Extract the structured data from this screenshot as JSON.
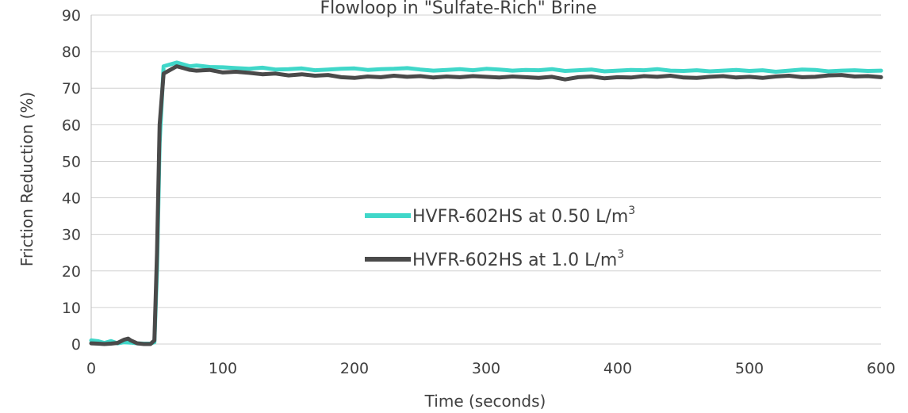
{
  "chart_data": {
    "type": "line",
    "title": "Flowloop in \"Sulfate-Rich\" Brine",
    "xlabel": "Time (seconds)",
    "ylabel": "Friction Reduction (%)",
    "xlim": [
      0,
      600
    ],
    "ylim": [
      0,
      90
    ],
    "x_ticks": [
      0,
      100,
      200,
      300,
      400,
      500,
      600
    ],
    "y_ticks": [
      0,
      10,
      20,
      30,
      40,
      50,
      60,
      70,
      80,
      90
    ],
    "grid": "horizontal",
    "legend_position": "center",
    "series": [
      {
        "name_main": "HVFR-602HS at 0.50 L/m",
        "name_sup": "3",
        "color": "#40d7c9",
        "x": [
          0,
          5,
          10,
          15,
          20,
          25,
          30,
          35,
          40,
          45,
          48,
          50,
          52,
          55,
          60,
          65,
          70,
          75,
          80,
          90,
          100,
          110,
          120,
          130,
          140,
          150,
          160,
          170,
          180,
          190,
          200,
          210,
          220,
          230,
          240,
          250,
          260,
          270,
          280,
          290,
          300,
          310,
          320,
          330,
          340,
          350,
          360,
          370,
          380,
          390,
          400,
          410,
          420,
          430,
          440,
          450,
          460,
          470,
          480,
          490,
          500,
          510,
          520,
          530,
          540,
          550,
          560,
          570,
          580,
          590,
          600
        ],
        "y": [
          1,
          0.8,
          0.3,
          0.8,
          0.2,
          0.5,
          0.4,
          0.2,
          0.1,
          0.1,
          0.5,
          20,
          55,
          76,
          76.5,
          77,
          76.5,
          76,
          76.2,
          75.8,
          75.7,
          75.5,
          75.3,
          75.6,
          75.1,
          75.2,
          75.4,
          74.9,
          75.1,
          75.3,
          75.4,
          75.0,
          75.2,
          75.3,
          75.5,
          75.1,
          74.8,
          75.0,
          75.2,
          74.9,
          75.3,
          75.1,
          74.8,
          75.0,
          74.9,
          75.2,
          74.7,
          74.9,
          75.1,
          74.6,
          74.8,
          75.0,
          74.9,
          75.2,
          74.8,
          74.7,
          74.9,
          74.6,
          74.8,
          75.0,
          74.7,
          74.9,
          74.5,
          74.8,
          75.1,
          75.0,
          74.6,
          74.8,
          74.9,
          74.7,
          74.8
        ]
      },
      {
        "name_main": "HVFR-602HS at 1.0 L/m",
        "name_sup": "3",
        "color": "#4a4a4a",
        "x": [
          0,
          5,
          10,
          15,
          20,
          25,
          28,
          30,
          35,
          40,
          45,
          48,
          50,
          52,
          55,
          60,
          65,
          70,
          75,
          80,
          90,
          100,
          110,
          120,
          130,
          140,
          150,
          160,
          170,
          180,
          190,
          200,
          210,
          220,
          230,
          240,
          250,
          260,
          270,
          280,
          290,
          300,
          310,
          320,
          330,
          340,
          350,
          360,
          370,
          380,
          390,
          400,
          410,
          420,
          430,
          440,
          450,
          460,
          470,
          480,
          490,
          500,
          510,
          520,
          530,
          540,
          550,
          560,
          570,
          580,
          590,
          600
        ],
        "y": [
          0.2,
          0.1,
          0.0,
          0.1,
          0.3,
          1.2,
          1.5,
          1.0,
          0.2,
          0.0,
          0.0,
          1.0,
          25,
          60,
          74,
          75,
          76,
          75.5,
          75,
          74.8,
          75,
          74.3,
          74.5,
          74.2,
          73.8,
          74.0,
          73.5,
          73.8,
          73.4,
          73.6,
          73.0,
          72.8,
          73.2,
          73.0,
          73.4,
          73.1,
          73.3,
          72.9,
          73.2,
          73.0,
          73.3,
          73.1,
          72.9,
          73.2,
          73.0,
          72.8,
          73.1,
          72.4,
          73.0,
          73.2,
          72.7,
          73.0,
          72.9,
          73.3,
          73.1,
          73.4,
          72.9,
          72.8,
          73.1,
          73.3,
          72.9,
          73.1,
          72.8,
          73.2,
          73.4,
          73.0,
          73.1,
          73.5,
          73.6,
          73.2,
          73.3,
          73.0
        ]
      }
    ]
  }
}
